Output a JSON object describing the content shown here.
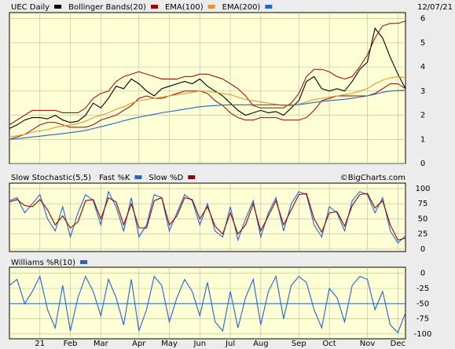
{
  "chart_data": [
    {
      "type": "line",
      "date": "12/07/21",
      "series": [
        {
          "name": "UEC Daily",
          "color": "#000000",
          "values": [
            1.45,
            1.6,
            1.8,
            1.9,
            1.9,
            1.85,
            2.0,
            1.8,
            1.7,
            1.75,
            2.0,
            2.5,
            2.3,
            2.7,
            3.2,
            3.1,
            3.5,
            3.3,
            3.0,
            2.8,
            3.1,
            3.2,
            3.3,
            3.4,
            3.3,
            3.5,
            3.2,
            3.0,
            2.8,
            2.5,
            2.2,
            2.0,
            2.1,
            2.2,
            2.1,
            2.15,
            2.0,
            2.3,
            2.6,
            3.4,
            3.6,
            3.1,
            3.0,
            3.1,
            3.0,
            3.4,
            3.9,
            4.2,
            5.6,
            5.2,
            4.4,
            3.7,
            3.1
          ]
        },
        {
          "name": "Bollinger Bands(20)",
          "color": "#990000",
          "type": "band",
          "upper": [
            1.6,
            1.8,
            2.0,
            2.2,
            2.2,
            2.2,
            2.2,
            2.1,
            2.1,
            2.1,
            2.3,
            2.7,
            2.9,
            3.0,
            3.4,
            3.6,
            3.7,
            3.8,
            3.7,
            3.6,
            3.5,
            3.5,
            3.5,
            3.6,
            3.6,
            3.7,
            3.7,
            3.6,
            3.5,
            3.3,
            3.1,
            2.8,
            2.4,
            2.3,
            2.3,
            2.3,
            2.3,
            2.5,
            2.9,
            3.6,
            3.9,
            3.9,
            3.8,
            3.6,
            3.5,
            3.6,
            4.0,
            4.5,
            5.2,
            5.7,
            5.8,
            5.8,
            5.9
          ],
          "lower": [
            1.0,
            1.1,
            1.2,
            1.4,
            1.6,
            1.7,
            1.7,
            1.6,
            1.5,
            1.5,
            1.5,
            1.6,
            1.8,
            1.9,
            2.0,
            2.2,
            2.4,
            2.7,
            2.8,
            2.7,
            2.7,
            2.8,
            2.9,
            3.0,
            3.0,
            3.0,
            2.9,
            2.6,
            2.4,
            2.1,
            1.9,
            1.8,
            1.8,
            1.9,
            1.9,
            1.9,
            1.8,
            1.8,
            1.8,
            1.9,
            2.2,
            2.6,
            2.7,
            2.8,
            2.8,
            2.8,
            2.8,
            2.8,
            2.9,
            3.1,
            3.3,
            3.3,
            3.1
          ]
        },
        {
          "name": "EMA(100)",
          "color": "#e09a30",
          "values": [
            1.1,
            1.15,
            1.2,
            1.3,
            1.35,
            1.4,
            1.5,
            1.55,
            1.6,
            1.65,
            1.75,
            1.9,
            2.0,
            2.1,
            2.25,
            2.35,
            2.5,
            2.6,
            2.65,
            2.7,
            2.75,
            2.8,
            2.85,
            2.9,
            2.95,
            3.0,
            3.0,
            2.95,
            2.9,
            2.85,
            2.75,
            2.65,
            2.6,
            2.55,
            2.5,
            2.45,
            2.4,
            2.4,
            2.45,
            2.55,
            2.65,
            2.7,
            2.75,
            2.8,
            2.85,
            2.9,
            3.0,
            3.1,
            3.3,
            3.45,
            3.55,
            3.6,
            3.55
          ]
        },
        {
          "name": "EMA(200)",
          "color": "#2266cc",
          "values": [
            1.0,
            1.03,
            1.06,
            1.1,
            1.13,
            1.17,
            1.2,
            1.24,
            1.28,
            1.32,
            1.37,
            1.45,
            1.52,
            1.6,
            1.68,
            1.77,
            1.85,
            1.92,
            1.98,
            2.04,
            2.1,
            2.15,
            2.2,
            2.25,
            2.3,
            2.35,
            2.38,
            2.4,
            2.42,
            2.43,
            2.43,
            2.43,
            2.43,
            2.43,
            2.43,
            2.43,
            2.42,
            2.42,
            2.44,
            2.48,
            2.53,
            2.57,
            2.6,
            2.63,
            2.66,
            2.7,
            2.75,
            2.8,
            2.87,
            2.95,
            3.0,
            3.02,
            3.03
          ]
        }
      ],
      "ylim": [
        0,
        6.25
      ],
      "yticks": [
        0,
        1,
        2,
        3,
        4,
        5,
        6
      ],
      "grid": true
    },
    {
      "type": "line",
      "title": "Slow Stochastic(5,5)",
      "credit": "©BigCharts.com",
      "series": [
        {
          "name": "Fast %K",
          "color": "#2266cc",
          "values": [
            80,
            85,
            60,
            75,
            90,
            50,
            30,
            70,
            20,
            60,
            90,
            80,
            40,
            95,
            70,
            30,
            85,
            20,
            40,
            90,
            85,
            30,
            60,
            90,
            80,
            40,
            75,
            30,
            20,
            70,
            15,
            50,
            80,
            20,
            60,
            85,
            30,
            75,
            95,
            90,
            40,
            20,
            70,
            60,
            30,
            80,
            95,
            90,
            60,
            85,
            30,
            10,
            22
          ]
        },
        {
          "name": "Slow %D",
          "color": "#990000",
          "values": [
            78,
            82,
            72,
            70,
            82,
            65,
            40,
            55,
            35,
            45,
            80,
            82,
            50,
            85,
            78,
            40,
            75,
            35,
            35,
            80,
            85,
            40,
            55,
            85,
            82,
            50,
            70,
            38,
            25,
            60,
            25,
            40,
            75,
            30,
            55,
            80,
            40,
            65,
            90,
            92,
            50,
            28,
            60,
            62,
            38,
            72,
            90,
            92,
            68,
            80,
            40,
            15,
            18
          ]
        }
      ],
      "ylim": [
        -4,
        109
      ],
      "yticks": [
        0,
        25,
        50,
        75,
        100
      ],
      "grid": true
    },
    {
      "type": "line",
      "title": "Williams %R(10)",
      "categories": [
        null,
        null,
        null,
        null,
        "21",
        null,
        null,
        null,
        "Feb",
        null,
        null,
        null,
        "Mar",
        null,
        null,
        null,
        null,
        "Apr",
        null,
        null,
        null,
        "May",
        null,
        null,
        null,
        "Jun",
        null,
        null,
        null,
        "Jul",
        null,
        null,
        null,
        "Aug",
        null,
        null,
        null,
        null,
        "Sep",
        null,
        null,
        null,
        "Oct",
        null,
        null,
        null,
        null,
        "Nov",
        null,
        null,
        null,
        "Dec",
        null
      ],
      "series": [
        {
          "name": "Williams %R(10)",
          "color": "#2266cc",
          "values": [
            -20,
            -10,
            -50,
            -30,
            -5,
            -60,
            -90,
            -20,
            -95,
            -40,
            -5,
            -30,
            -70,
            -10,
            -40,
            -85,
            -10,
            -95,
            -60,
            -5,
            -20,
            -80,
            -40,
            -10,
            -30,
            -70,
            -15,
            -80,
            -95,
            -30,
            -90,
            -40,
            -10,
            -85,
            -30,
            -5,
            -75,
            -20,
            -5,
            -15,
            -60,
            -90,
            -25,
            -40,
            -80,
            -20,
            -5,
            -10,
            -60,
            -30,
            -85,
            -98,
            -65
          ]
        }
      ],
      "reference_line": {
        "value": -50,
        "color": "#2266cc"
      },
      "ylim": [
        -108,
        10
      ],
      "yticks": [
        0,
        -25,
        -50,
        -75,
        -100
      ],
      "grid": true
    }
  ]
}
